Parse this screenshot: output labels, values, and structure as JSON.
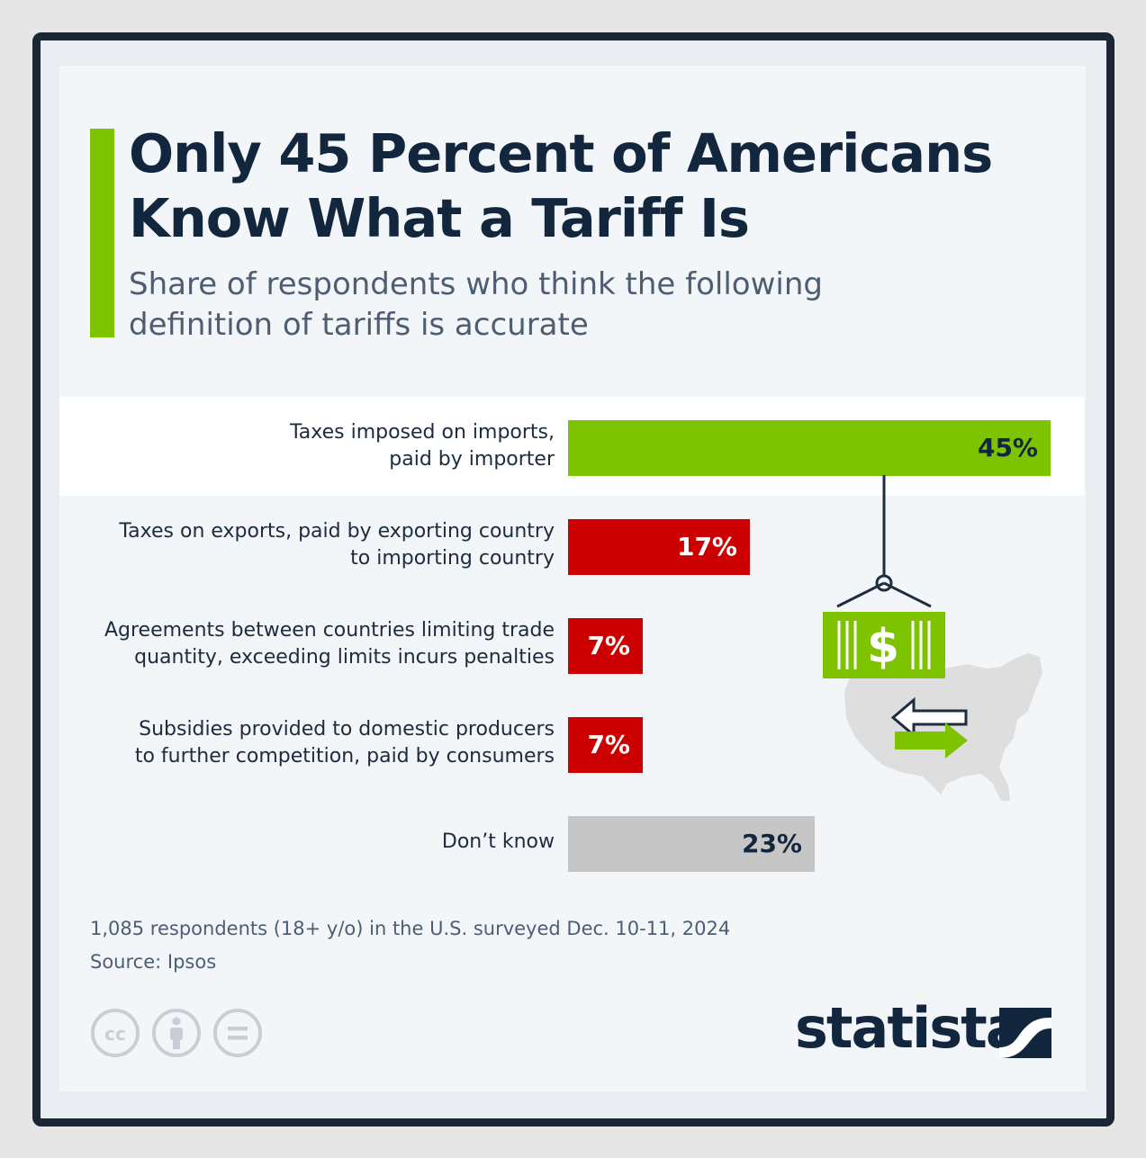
{
  "header": {
    "title": "Only 45 Percent of Americans Know What a Tariff Is",
    "subtitle": "Share of respondents who think the following definition of tariffs is accurate"
  },
  "chart_data": {
    "type": "bar",
    "orientation": "horizontal",
    "categories": [
      "Taxes imposed on imports, paid by importer",
      "Taxes on exports, paid by exporting country to importing country",
      "Agreements between countries limiting trade quantity, exceeding limits incurs penalties",
      "Subsidies provided to domestic producers to further competition, paid by consumers",
      "Don’t know"
    ],
    "label_lines": [
      [
        "Taxes imposed on imports,",
        "paid by importer"
      ],
      [
        "Taxes on exports, paid by exporting country",
        "to importing country"
      ],
      [
        "Agreements between countries limiting trade",
        "quantity, exceeding limits incurs penalties"
      ],
      [
        "Subsidies provided to domestic producers",
        "to further competition, paid by consumers"
      ],
      [
        "Don’t know"
      ]
    ],
    "values": [
      45,
      17,
      7,
      7,
      23
    ],
    "value_labels": [
      "45%",
      "17%",
      "7%",
      "7%",
      "23%"
    ],
    "unit": "%",
    "xlim": [
      0,
      45
    ],
    "bar_colors": [
      "#7dc300",
      "#cc0000",
      "#cc0000",
      "#cc0000",
      "#c6c6c6"
    ],
    "value_label_colors": [
      "#12263e",
      "#ffffff",
      "#ffffff",
      "#ffffff",
      "#12263e"
    ],
    "highlighted_row": 0,
    "grid": false,
    "legend": "none"
  },
  "footer": {
    "note": "1,085 respondents (18+ y/o) in the U.S. surveyed Dec. 10-11, 2024",
    "source": "Source: Ipsos",
    "license_icons": [
      "cc-icon",
      "attribution-icon",
      "no-derivatives-icon"
    ],
    "brand": "statista"
  },
  "colors": {
    "accent": "#7dc300",
    "negative": "#cc0000",
    "neutral": "#c6c6c6",
    "title": "#12263e",
    "frame": "#1a2636"
  },
  "illustration": {
    "icons": [
      "container-icon",
      "dollar-icon",
      "usa-map-icon",
      "import-arrow-icon",
      "export-arrow-icon"
    ]
  }
}
